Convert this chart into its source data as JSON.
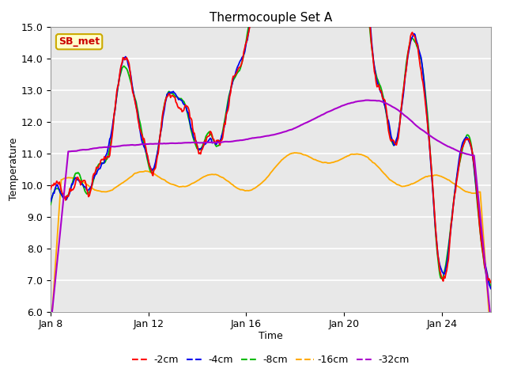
{
  "title": "Thermocouple Set A",
  "xlabel": "Time",
  "ylabel": "Temperature",
  "ylim": [
    6.0,
    15.0
  ],
  "yticks": [
    6.0,
    7.0,
    8.0,
    9.0,
    10.0,
    11.0,
    12.0,
    13.0,
    14.0,
    15.0
  ],
  "xtick_labels": [
    "Jan 8",
    "Jan 12",
    "Jan 16",
    "Jan 20",
    "Jan 24"
  ],
  "xtick_positions": [
    0,
    4,
    8,
    12,
    16
  ],
  "colors": {
    "-2cm": "#ff0000",
    "-4cm": "#0000ee",
    "-8cm": "#00bb00",
    "-16cm": "#ffaa00",
    "-32cm": "#aa00cc"
  },
  "legend_labels": [
    "-2cm",
    "-4cm",
    "-8cm",
    "-16cm",
    "-32cm"
  ],
  "annotation_text": "SB_met",
  "annotation_color": "#cc0000",
  "annotation_bg": "#ffffcc",
  "annotation_border": "#ccaa00",
  "fig_facecolor": "#ffffff",
  "plot_facecolor": "#e8e8e8",
  "grid_color": "#ffffff",
  "n_points": 500
}
